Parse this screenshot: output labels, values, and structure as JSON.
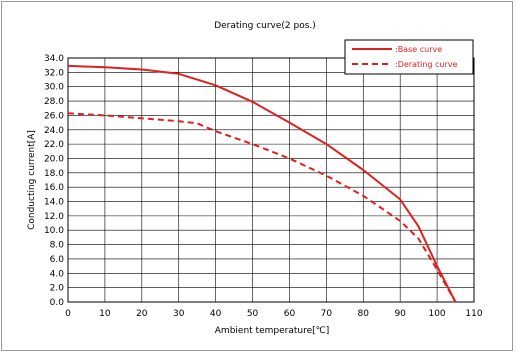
{
  "chart_data": {
    "type": "line",
    "title": "Derating curve(2 pos.)",
    "xlabel": "Ambient temperature[℃]",
    "ylabel": "Conducting current[A]",
    "xlim": [
      0,
      110
    ],
    "ylim": [
      0,
      34
    ],
    "x_ticks": [
      0,
      10,
      20,
      30,
      40,
      50,
      60,
      70,
      80,
      90,
      100,
      110
    ],
    "x_tick_labels": [
      "0",
      "10",
      "20",
      "30",
      "40",
      "50",
      "60",
      "70",
      "80",
      "90",
      "100",
      "110"
    ],
    "y_ticks": [
      0,
      2,
      4,
      6,
      8,
      10,
      12,
      14,
      16,
      18,
      20,
      22,
      24,
      26,
      28,
      30,
      32,
      34
    ],
    "y_tick_labels": [
      "0.0",
      "2.0",
      "4.0",
      "6.0",
      "8.0",
      "10.0",
      "12.0",
      "14.0",
      "16.0",
      "18.0",
      "20.0",
      "22.0",
      "24.0",
      "26.0",
      "28.0",
      "30.0",
      "32.0",
      "34.0"
    ],
    "grid": true,
    "legend_position": "top-right",
    "series": [
      {
        "name": ":Base curve",
        "style": "solid",
        "color": "#e02020",
        "points": [
          [
            0,
            32.9
          ],
          [
            10,
            32.7
          ],
          [
            20,
            32.4
          ],
          [
            30,
            31.8
          ],
          [
            40,
            30.2
          ],
          [
            50,
            27.9
          ],
          [
            60,
            25.0
          ],
          [
            70,
            22.0
          ],
          [
            80,
            18.4
          ],
          [
            90,
            14.3
          ],
          [
            95,
            10.5
          ],
          [
            100,
            5.0
          ],
          [
            105,
            0
          ]
        ]
      },
      {
        "name": ":Derating curve",
        "style": "dashed",
        "color": "#e02020",
        "points": [
          [
            0,
            26.3
          ],
          [
            10,
            26.0
          ],
          [
            20,
            25.6
          ],
          [
            30,
            25.2
          ],
          [
            35,
            24.9
          ],
          [
            40,
            23.8
          ],
          [
            50,
            22.0
          ],
          [
            60,
            20.0
          ],
          [
            70,
            17.6
          ],
          [
            80,
            14.8
          ],
          [
            90,
            11.3
          ],
          [
            95,
            8.8
          ],
          [
            100,
            4.5
          ],
          [
            105,
            0
          ]
        ]
      }
    ]
  }
}
